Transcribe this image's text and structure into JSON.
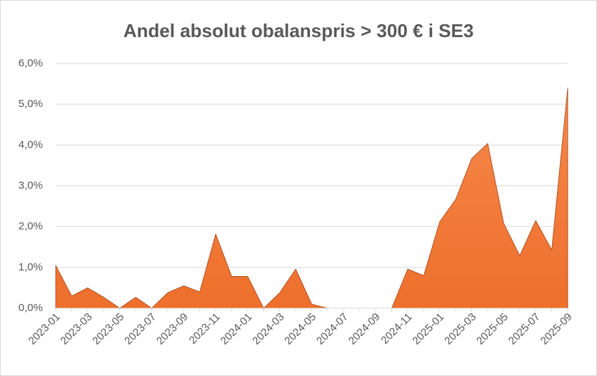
{
  "chart_data": {
    "type": "area",
    "title": "Andel absolut obalanspris > 300 € i SE3",
    "categories": [
      "2023-01",
      null,
      "2023-03",
      null,
      "2023-05",
      null,
      "2023-07",
      null,
      "2023-09",
      null,
      "2023-11",
      null,
      "2024-01",
      null,
      "2024-03",
      null,
      "2024-05",
      null,
      "2024-07",
      null,
      "2024-09",
      null,
      "2024-11",
      null,
      "2025-01",
      null,
      "2025-03",
      null,
      "2025-05",
      null,
      "2025-07",
      null,
      "2025-09"
    ],
    "values": [
      1.05,
      0.3,
      0.5,
      0.27,
      0,
      0.27,
      0,
      0.38,
      0.55,
      0.4,
      1.82,
      0.78,
      0.78,
      0,
      0.38,
      0.96,
      0.1,
      0,
      0,
      0,
      0,
      0,
      0.96,
      0.8,
      2.12,
      2.67,
      3.67,
      4.04,
      2.08,
      1.29,
      2.15,
      1.43,
      5.4
    ],
    "color": "#f47b3a",
    "ylim": [
      0,
      6
    ],
    "yticks": [
      {
        "value": 0,
        "label": "0,0%"
      },
      {
        "value": 1,
        "label": "1,0%"
      },
      {
        "value": 2,
        "label": "2,0%"
      },
      {
        "value": 3,
        "label": "3,0%"
      },
      {
        "value": 4,
        "label": "4,0%"
      },
      {
        "value": 5,
        "label": "5,0%"
      },
      {
        "value": 6,
        "label": "6,0%"
      }
    ],
    "grid": true
  }
}
